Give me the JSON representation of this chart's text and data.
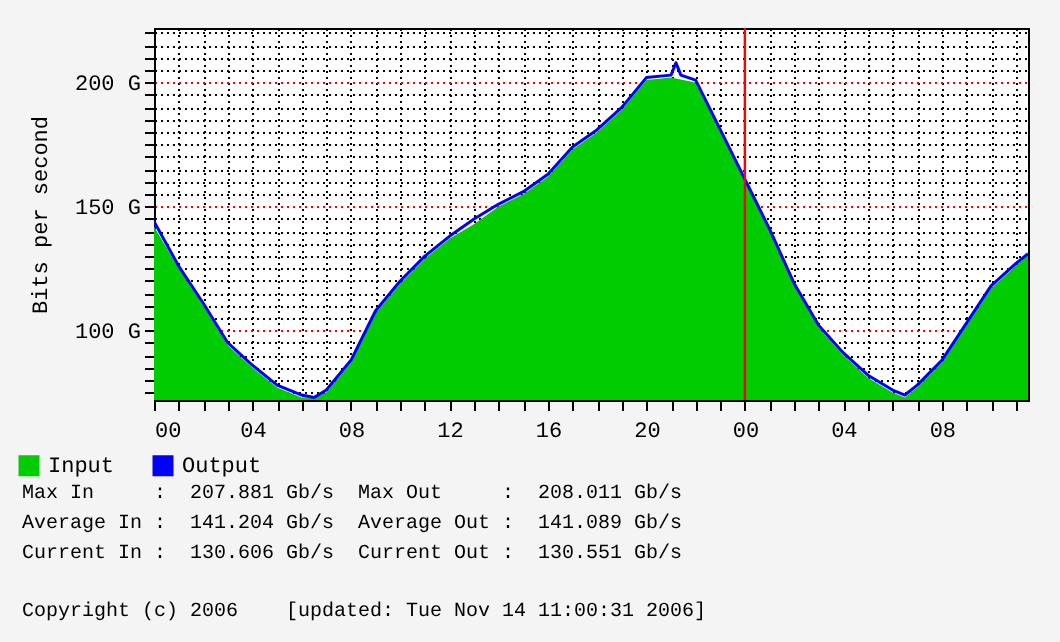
{
  "chart_data": {
    "type": "area",
    "ylabel": "Bits per second",
    "xlim": [
      0,
      35.5
    ],
    "xticks": [
      {
        "value": 0,
        "label": "00"
      },
      {
        "value": 1,
        "label": null
      },
      {
        "value": 2,
        "label": null
      },
      {
        "value": 3,
        "label": null
      },
      {
        "value": 4,
        "label": "04"
      },
      {
        "value": 5,
        "label": null
      },
      {
        "value": 6,
        "label": null
      },
      {
        "value": 7,
        "label": null
      },
      {
        "value": 8,
        "label": "08"
      },
      {
        "value": 9,
        "label": null
      },
      {
        "value": 10,
        "label": null
      },
      {
        "value": 11,
        "label": null
      },
      {
        "value": 12,
        "label": "12"
      },
      {
        "value": 13,
        "label": null
      },
      {
        "value": 14,
        "label": null
      },
      {
        "value": 15,
        "label": null
      },
      {
        "value": 16,
        "label": "16"
      },
      {
        "value": 17,
        "label": null
      },
      {
        "value": 18,
        "label": null
      },
      {
        "value": 19,
        "label": null
      },
      {
        "value": 20,
        "label": "20"
      },
      {
        "value": 21,
        "label": null
      },
      {
        "value": 22,
        "label": null
      },
      {
        "value": 23,
        "label": null
      },
      {
        "value": 24,
        "label": "00"
      },
      {
        "value": 25,
        "label": null
      },
      {
        "value": 26,
        "label": null
      },
      {
        "value": 27,
        "label": null
      },
      {
        "value": 28,
        "label": "04"
      },
      {
        "value": 29,
        "label": null
      },
      {
        "value": 30,
        "label": null
      },
      {
        "value": 31,
        "label": null
      },
      {
        "value": 32,
        "label": "08"
      },
      {
        "value": 33,
        "label": null
      },
      {
        "value": 34,
        "label": null
      },
      {
        "value": 35,
        "label": null
      }
    ],
    "ylim": [
      72,
      222
    ],
    "yticks": [
      {
        "value": 75,
        "label": null
      },
      {
        "value": 80,
        "label": null
      },
      {
        "value": 85,
        "label": null
      },
      {
        "value": 90,
        "label": null
      },
      {
        "value": 95,
        "label": null
      },
      {
        "value": 100,
        "label": "100 G"
      },
      {
        "value": 105,
        "label": null
      },
      {
        "value": 110,
        "label": null
      },
      {
        "value": 115,
        "label": null
      },
      {
        "value": 120,
        "label": null
      },
      {
        "value": 125,
        "label": null
      },
      {
        "value": 130,
        "label": null
      },
      {
        "value": 135,
        "label": null
      },
      {
        "value": 140,
        "label": null
      },
      {
        "value": 145,
        "label": null
      },
      {
        "value": 150,
        "label": "150 G"
      },
      {
        "value": 155,
        "label": null
      },
      {
        "value": 160,
        "label": null
      },
      {
        "value": 165,
        "label": null
      },
      {
        "value": 170,
        "label": null
      },
      {
        "value": 175,
        "label": null
      },
      {
        "value": 180,
        "label": null
      },
      {
        "value": 185,
        "label": null
      },
      {
        "value": 190,
        "label": null
      },
      {
        "value": 195,
        "label": null
      },
      {
        "value": 200,
        "label": "200 G"
      },
      {
        "value": 205,
        "label": null
      },
      {
        "value": 210,
        "label": null
      },
      {
        "value": 215,
        "label": null
      },
      {
        "value": 220,
        "label": null
      }
    ],
    "grid": true,
    "legend": "bottom",
    "series": [
      {
        "name": "Input",
        "color": "#00cc00",
        "x": [
          0,
          1,
          2,
          3,
          4,
          5,
          6,
          6.5,
          7,
          8,
          9,
          10,
          11,
          12,
          13,
          14,
          15,
          16,
          17,
          18,
          19,
          20,
          21,
          22,
          23,
          24,
          25,
          26,
          27,
          28,
          29,
          30,
          30.5,
          31,
          32,
          33,
          34,
          35,
          35.5
        ],
        "values": [
          142,
          125,
          110,
          94,
          85,
          77,
          73,
          73,
          75,
          87,
          107,
          119,
          129,
          137,
          143,
          150,
          155,
          162,
          173,
          180,
          189,
          201,
          202,
          200,
          180,
          160,
          140,
          118,
          101,
          90,
          81,
          75,
          73,
          77,
          87,
          102,
          117,
          126,
          131
        ]
      },
      {
        "name": "Output",
        "type": "line",
        "color": "#0000ff",
        "x": [
          0,
          1,
          2,
          3,
          4,
          5,
          6,
          6.5,
          7,
          8,
          9,
          10,
          11,
          12,
          13,
          14,
          15,
          16,
          17,
          18,
          19,
          20,
          21,
          21.2,
          21.4,
          22,
          23,
          24,
          25,
          26,
          27,
          28,
          29,
          30,
          30.5,
          31,
          32,
          33,
          34,
          35,
          35.5
        ],
        "values": [
          144,
          126,
          111,
          95,
          86,
          78,
          74,
          73,
          76,
          88,
          108,
          120,
          130,
          138,
          145,
          151,
          156,
          163,
          174,
          181,
          190,
          202,
          203,
          208,
          203,
          201,
          181,
          161,
          141,
          119,
          102,
          91,
          82,
          76,
          74,
          78,
          88,
          103,
          118,
          127,
          131
        ]
      }
    ],
    "ref_lines": [
      {
        "axis": "x",
        "value": 24,
        "color": "#ff0000"
      }
    ],
    "annotations": [
      "Max In     :  207.881 Gb/s  Max Out     :  208.011 Gb/s",
      "Average In :  141.204 Gb/s  Average Out :  141.089 Gb/s",
      "Current In :  130.606 Gb/s  Current Out :  130.551 Gb/s",
      "Copyright (c) 2006    [updated: Tue Nov 14 11:00:31 2006]"
    ]
  }
}
